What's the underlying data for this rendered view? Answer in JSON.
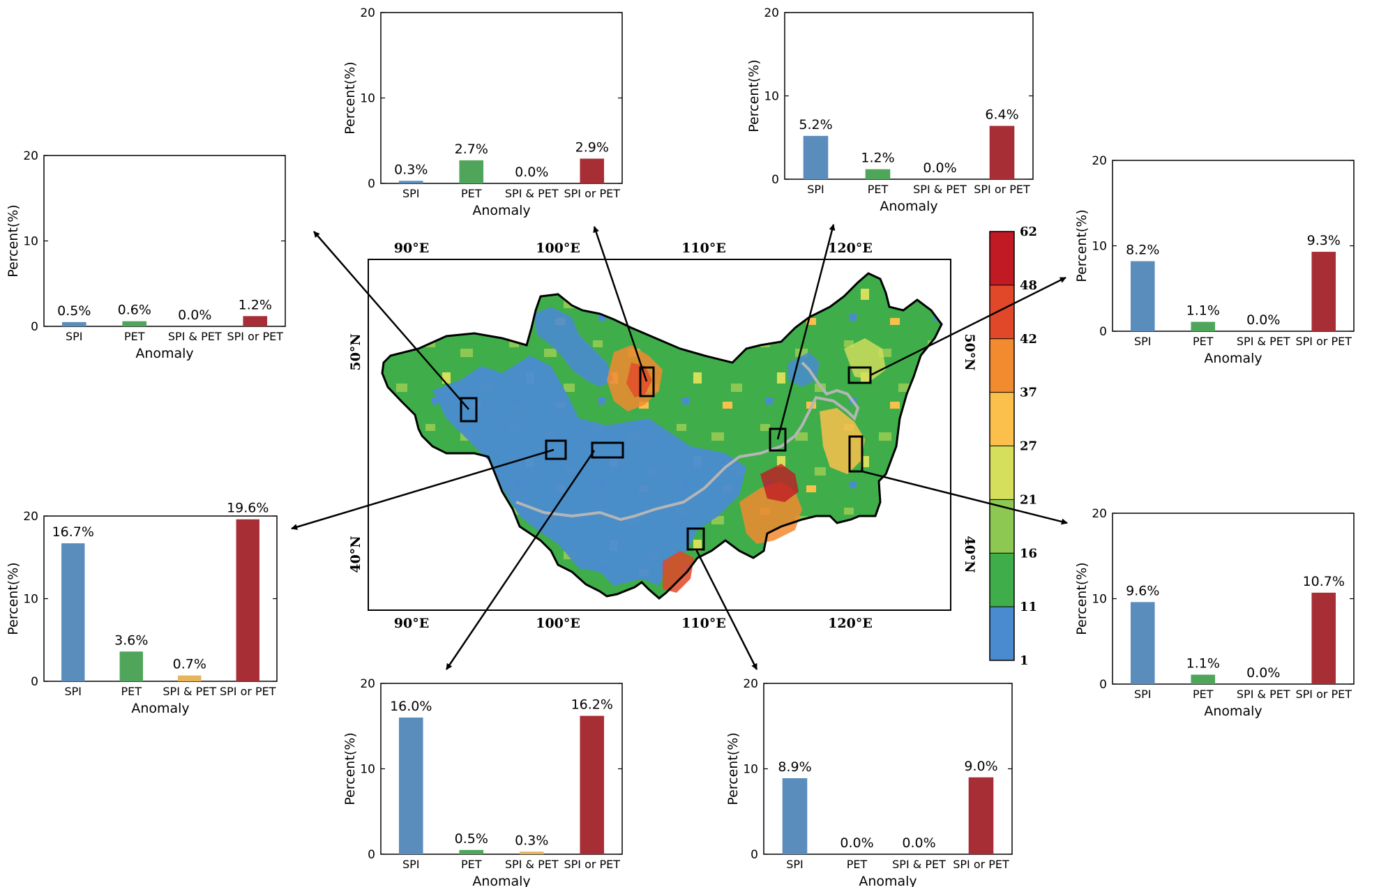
{
  "chart_data": [
    {
      "type": "bar",
      "panel": "upper-left",
      "categories": [
        "SPI",
        "PET",
        "SPI & PET",
        "SPI or PET"
      ],
      "values": [
        0.5,
        0.6,
        0.0,
        1.2
      ],
      "value_labels": [
        "0.5%",
        "0.6%",
        "0.0%",
        "1.2%"
      ],
      "ylabel": "Percent(%)",
      "xlabel": "Anomaly",
      "ylim": [
        0,
        20
      ],
      "yticks": [
        "0",
        "10",
        "20"
      ]
    },
    {
      "type": "bar",
      "panel": "top-center-left",
      "categories": [
        "SPI",
        "PET",
        "SPI & PET",
        "SPI or PET"
      ],
      "values": [
        0.3,
        2.7,
        0.0,
        2.9
      ],
      "value_labels": [
        "0.3%",
        "2.7%",
        "0.0%",
        "2.9%"
      ],
      "ylabel": "Percent(%)",
      "xlabel": "Anomaly",
      "ylim": [
        0,
        20
      ],
      "yticks": [
        "0",
        "10",
        "20"
      ]
    },
    {
      "type": "bar",
      "panel": "top-center-right",
      "categories": [
        "SPI",
        "PET",
        "SPI & PET",
        "SPI or PET"
      ],
      "values": [
        5.2,
        1.2,
        0.0,
        6.4
      ],
      "value_labels": [
        "5.2%",
        "1.2%",
        "0.0%",
        "6.4%"
      ],
      "ylabel": "Percent(%)",
      "xlabel": "Anomaly",
      "ylim": [
        0,
        20
      ],
      "yticks": [
        "0",
        "10",
        "20"
      ]
    },
    {
      "type": "bar",
      "panel": "upper-right",
      "categories": [
        "SPI",
        "PET",
        "SPI & PET",
        "SPI or PET"
      ],
      "values": [
        8.2,
        1.1,
        0.0,
        9.3
      ],
      "value_labels": [
        "8.2%",
        "1.1%",
        "0.0%",
        "9.3%"
      ],
      "ylabel": "Percent(%)",
      "xlabel": "Anomaly",
      "ylim": [
        0,
        20
      ],
      "yticks": [
        "0",
        "10",
        "20"
      ]
    },
    {
      "type": "bar",
      "panel": "middle-left",
      "categories": [
        "SPI",
        "PET",
        "SPI & PET",
        "SPI or PET"
      ],
      "values": [
        16.7,
        3.6,
        0.7,
        19.6
      ],
      "value_labels": [
        "16.7%",
        "3.6%",
        "0.7%",
        "19.6%"
      ],
      "ylabel": "Percent(%)",
      "xlabel": "Anomaly",
      "ylim": [
        0,
        20
      ],
      "yticks": [
        "0",
        "10",
        "20"
      ]
    },
    {
      "type": "bar",
      "panel": "middle-right",
      "categories": [
        "SPI",
        "PET",
        "SPI & PET",
        "SPI or PET"
      ],
      "values": [
        9.6,
        1.1,
        0.0,
        10.7
      ],
      "value_labels": [
        "9.6%",
        "1.1%",
        "0.0%",
        "10.7%"
      ],
      "ylabel": "Percent(%)",
      "xlabel": "Anomaly",
      "ylim": [
        0,
        20
      ],
      "yticks": [
        "0",
        "10",
        "20"
      ]
    },
    {
      "type": "bar",
      "panel": "bottom-left",
      "categories": [
        "SPI",
        "PET",
        "SPI & PET",
        "SPI or PET"
      ],
      "values": [
        16.0,
        0.5,
        0.3,
        16.2
      ],
      "value_labels": [
        "16.0%",
        "0.5%",
        "0.3%",
        "16.2%"
      ],
      "ylabel": "Percent(%)",
      "xlabel": "Anomaly",
      "ylim": [
        0,
        20
      ],
      "yticks": [
        "0",
        "10",
        "20"
      ]
    },
    {
      "type": "bar",
      "panel": "bottom-right",
      "categories": [
        "SPI",
        "PET",
        "SPI & PET",
        "SPI or PET"
      ],
      "values": [
        8.9,
        0.0,
        0.0,
        9.0
      ],
      "value_labels": [
        "8.9%",
        "0.0%",
        "0.0%",
        "9.0%"
      ],
      "ylabel": "Percent(%)",
      "xlabel": "Anomaly",
      "ylim": [
        0,
        20
      ],
      "yticks": [
        "0",
        "10",
        "20"
      ]
    }
  ],
  "bar_colors": [
    "#5a8dbc",
    "#4fa55a",
    "#e6b45a",
    "#a82e36"
  ],
  "map": {
    "lon_labels": [
      "90°E",
      "100°E",
      "110°E",
      "120°E"
    ],
    "lat_labels": [
      "50°N",
      "40°N"
    ],
    "colorbar": {
      "ticks": [
        "1",
        "11",
        "16",
        "21",
        "27",
        "37",
        "42",
        "48",
        "62"
      ],
      "colors": [
        "#4a8bd0",
        "#3fae4a",
        "#8dc853",
        "#d6df5c",
        "#fbbf4c",
        "#f28a30",
        "#e14829",
        "#c11a24"
      ]
    }
  }
}
